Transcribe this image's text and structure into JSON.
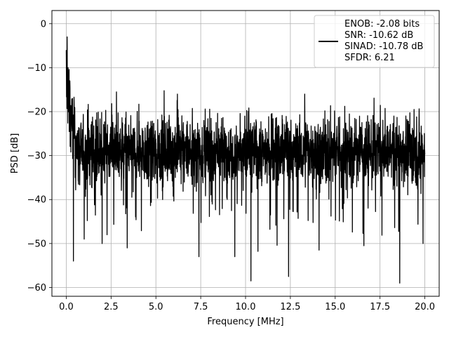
{
  "chart_data": {
    "type": "line",
    "title": "",
    "xlabel": "Frequency [MHz]",
    "ylabel": "PSD [dB]",
    "xlim": [
      -0.8,
      20.8
    ],
    "ylim": [
      -62,
      3
    ],
    "xticks": [
      0.0,
      2.5,
      5.0,
      7.5,
      10.0,
      12.5,
      15.0,
      17.5,
      20.0
    ],
    "xtick_labels": [
      "0.0",
      "2.5",
      "5.0",
      "7.5",
      "10.0",
      "12.5",
      "15.0",
      "17.5",
      "20.0"
    ],
    "yticks": [
      0,
      -10,
      -20,
      -30,
      -40,
      -50,
      -60
    ],
    "ytick_labels": [
      "0",
      "−10",
      "−20",
      "−30",
      "−40",
      "−50",
      "−60"
    ],
    "grid": true,
    "legend_position": "top-right",
    "line_color": "#000000",
    "series": [
      {
        "legend_lines": [
          "ENOB: -2.08 bits",
          "SNR: -10.62 dB",
          "SINAD: -10.78 dB",
          "SFDR: 6.21"
        ],
        "x_range": [
          0,
          20
        ],
        "peak": {
          "x": 0.0,
          "y": 0
        },
        "noise_floor_mean": -29,
        "noise_band_top": -22,
        "noise_band_bottom": -38,
        "notable_peaks": [
          {
            "x": 0.05,
            "y": -3
          },
          {
            "x": 0.1,
            "y": -10
          },
          {
            "x": 0.2,
            "y": -13
          },
          {
            "x": 0.35,
            "y": -17
          },
          {
            "x": 2.8,
            "y": -15.5
          },
          {
            "x": 6.2,
            "y": -16
          },
          {
            "x": 13.3,
            "y": -16
          },
          {
            "x": 19.4,
            "y": -19.5
          }
        ],
        "notable_dips": [
          {
            "x": 0.4,
            "y": -54
          },
          {
            "x": 1.0,
            "y": -49
          },
          {
            "x": 2.0,
            "y": -50
          },
          {
            "x": 3.4,
            "y": -51
          },
          {
            "x": 7.4,
            "y": -53
          },
          {
            "x": 9.4,
            "y": -53
          },
          {
            "x": 10.3,
            "y": -58.5
          },
          {
            "x": 12.4,
            "y": -57.5
          },
          {
            "x": 14.1,
            "y": -51.5
          },
          {
            "x": 16.6,
            "y": -50.5
          },
          {
            "x": 18.6,
            "y": -59
          },
          {
            "x": 19.9,
            "y": -50
          }
        ]
      }
    ]
  }
}
